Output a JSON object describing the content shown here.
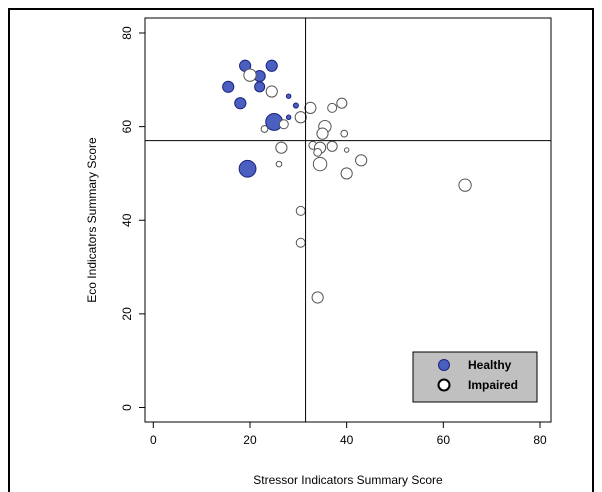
{
  "chart_data": {
    "type": "scatter",
    "xlabel": "Stressor Indicators Summary Score",
    "ylabel": "Eco Indicators Summary Score",
    "xlim": [
      0,
      80
    ],
    "ylim": [
      0,
      80
    ],
    "xticks": [
      0,
      20,
      40,
      60,
      80
    ],
    "yticks": [
      0,
      20,
      40,
      60,
      80
    ],
    "reference_lines": {
      "x": 31.5,
      "y": 57
    },
    "legend_position": "bottom-right",
    "colors": {
      "healthy_fill": "#4a5fc0",
      "healthy_stroke": "#1a237e",
      "impaired_fill": "#ffffff",
      "impaired_stroke": "#555555"
    },
    "series": [
      {
        "name": "Healthy",
        "points": [
          {
            "x": 19.0,
            "y": 73.0,
            "s": 1.0
          },
          {
            "x": 24.5,
            "y": 73.0,
            "s": 1.0
          },
          {
            "x": 22.0,
            "y": 70.8,
            "s": 1.0
          },
          {
            "x": 15.5,
            "y": 68.5,
            "s": 1.0
          },
          {
            "x": 22.0,
            "y": 68.5,
            "s": 0.9
          },
          {
            "x": 18.0,
            "y": 65.0,
            "s": 1.0
          },
          {
            "x": 28.0,
            "y": 66.5,
            "s": 0.4
          },
          {
            "x": 29.5,
            "y": 64.5,
            "s": 0.45
          },
          {
            "x": 28.0,
            "y": 62.0,
            "s": 0.4
          },
          {
            "x": 25.0,
            "y": 61.0,
            "s": 1.5
          },
          {
            "x": 19.5,
            "y": 51.0,
            "s": 1.5
          }
        ]
      },
      {
        "name": "Impaired",
        "points": [
          {
            "x": 20.0,
            "y": 71.0,
            "s": 1.1
          },
          {
            "x": 24.5,
            "y": 67.5,
            "s": 1.0
          },
          {
            "x": 23.0,
            "y": 59.5,
            "s": 0.6
          },
          {
            "x": 27.0,
            "y": 60.5,
            "s": 0.8
          },
          {
            "x": 30.5,
            "y": 62.0,
            "s": 1.0
          },
          {
            "x": 32.5,
            "y": 64.0,
            "s": 1.0
          },
          {
            "x": 39.0,
            "y": 65.0,
            "s": 0.9
          },
          {
            "x": 37.0,
            "y": 64.0,
            "s": 0.8
          },
          {
            "x": 35.5,
            "y": 60.0,
            "s": 1.1
          },
          {
            "x": 35.0,
            "y": 58.5,
            "s": 1.0
          },
          {
            "x": 39.5,
            "y": 58.5,
            "s": 0.6
          },
          {
            "x": 26.5,
            "y": 55.5,
            "s": 1.0
          },
          {
            "x": 33.0,
            "y": 56.0,
            "s": 0.7
          },
          {
            "x": 34.5,
            "y": 55.5,
            "s": 1.0
          },
          {
            "x": 37.0,
            "y": 55.8,
            "s": 0.9
          },
          {
            "x": 40.0,
            "y": 55.0,
            "s": 0.4
          },
          {
            "x": 34.0,
            "y": 54.5,
            "s": 0.7
          },
          {
            "x": 34.5,
            "y": 52.0,
            "s": 1.2
          },
          {
            "x": 43.0,
            "y": 52.8,
            "s": 1.0
          },
          {
            "x": 26.0,
            "y": 52.0,
            "s": 0.5
          },
          {
            "x": 40.0,
            "y": 50.0,
            "s": 1.0
          },
          {
            "x": 64.5,
            "y": 47.5,
            "s": 1.1
          },
          {
            "x": 30.5,
            "y": 42.0,
            "s": 0.8
          },
          {
            "x": 30.5,
            "y": 35.2,
            "s": 0.8
          },
          {
            "x": 34.0,
            "y": 23.5,
            "s": 1.0
          }
        ]
      }
    ]
  }
}
